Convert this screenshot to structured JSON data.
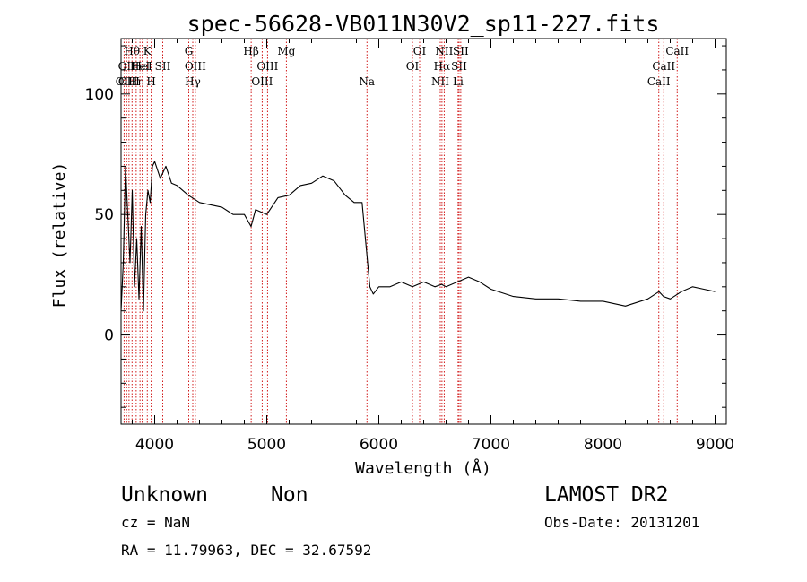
{
  "chart_data": {
    "type": "line",
    "title": "spec-56628-VB011N30V2_sp11-227.fits",
    "xlabel": "Wavelength (Å)",
    "ylabel": "Flux (relative)",
    "xlim": [
      3700,
      9100
    ],
    "ylim": [
      -37,
      123
    ],
    "x_ticks": [
      4000,
      5000,
      6000,
      7000,
      8000,
      9000
    ],
    "y_ticks": [
      0,
      50,
      100
    ],
    "x_minor_step": 200,
    "y_minor_step": 10,
    "grid": false,
    "line_color": "#000000",
    "marker_color": "#cc0000",
    "series": [
      {
        "x": [
          3700,
          3720,
          3740,
          3760,
          3780,
          3800,
          3820,
          3840,
          3860,
          3880,
          3900,
          3920,
          3940,
          3960,
          3980,
          4000,
          4050,
          4100,
          4150,
          4200,
          4300,
          4400,
          4500,
          4600,
          4700,
          4800,
          4860,
          4900,
          5000,
          5100,
          5200,
          5300,
          5400,
          5500,
          5600,
          5700,
          5780,
          5850,
          5880,
          5900,
          5920,
          5950,
          6000,
          6100,
          6200,
          6300,
          6400,
          6500,
          6560,
          6600,
          6700,
          6800,
          6900,
          7000,
          7200,
          7400,
          7600,
          7800,
          8000,
          8200,
          8400,
          8500,
          8540,
          8600,
          8700,
          8800,
          8900,
          9000
        ],
        "y": [
          10,
          30,
          70,
          50,
          30,
          60,
          20,
          40,
          15,
          45,
          10,
          50,
          60,
          55,
          70,
          72,
          65,
          70,
          63,
          62,
          58,
          55,
          54,
          53,
          50,
          50,
          45,
          52,
          50,
          57,
          58,
          62,
          63,
          66,
          64,
          58,
          55,
          55,
          40,
          30,
          20,
          17,
          20,
          20,
          22,
          20,
          22,
          20,
          21,
          20,
          22,
          24,
          22,
          19,
          16,
          15,
          15,
          14,
          14,
          12,
          15,
          18,
          16,
          15,
          18,
          20,
          19,
          18
        ]
      }
    ],
    "lines": [
      {
        "x": 3727,
        "row": 2,
        "label": "OII"
      },
      {
        "x": 3750,
        "row": 1,
        "label": "OII"
      },
      {
        "x": 3771,
        "row": 2,
        "label": "OIII"
      },
      {
        "x": 3798,
        "row": 0,
        "label": "Hθ"
      },
      {
        "x": 3835,
        "row": 2,
        "label": "Hη"
      },
      {
        "x": 3869,
        "row": 1,
        "label": "HeI"
      },
      {
        "x": 3889,
        "row": 1,
        "label": "HeI"
      },
      {
        "x": 3934,
        "row": 0,
        "label": "K"
      },
      {
        "x": 3969,
        "row": 2,
        "label": "H"
      },
      {
        "x": 4072,
        "row": 1,
        "label": "SII"
      },
      {
        "x": 4304,
        "row": 0,
        "label": "G"
      },
      {
        "x": 4340,
        "row": 2,
        "label": "Hγ"
      },
      {
        "x": 4363,
        "row": 1,
        "label": "OIII"
      },
      {
        "x": 4861,
        "row": 0,
        "label": "Hβ"
      },
      {
        "x": 4959,
        "row": 2,
        "label": "OIII"
      },
      {
        "x": 5007,
        "row": 1,
        "label": "OIII"
      },
      {
        "x": 5175,
        "row": 0,
        "label": "Mg"
      },
      {
        "x": 5894,
        "row": 2,
        "label": "Na"
      },
      {
        "x": 6300,
        "row": 1,
        "label": "OI"
      },
      {
        "x": 6364,
        "row": 0,
        "label": "OI"
      },
      {
        "x": 6548,
        "row": 2,
        "label": "NII"
      },
      {
        "x": 6563,
        "row": 1,
        "label": "Hα"
      },
      {
        "x": 6583,
        "row": 0,
        "label": "NII"
      },
      {
        "x": 6707,
        "row": 2,
        "label": "Li"
      },
      {
        "x": 6716,
        "row": 1,
        "label": "SII"
      },
      {
        "x": 6731,
        "row": 0,
        "label": "SII"
      },
      {
        "x": 8498,
        "row": 2,
        "label": "CaII"
      },
      {
        "x": 8542,
        "row": 1,
        "label": "CaII"
      },
      {
        "x": 8662,
        "row": 0,
        "label": "CaII"
      }
    ]
  },
  "info": {
    "object_class": "Unknown",
    "subclass": "Non",
    "survey": "LAMOST DR2",
    "cz": "cz = NaN",
    "obs_date": "Obs-Date: 20131201",
    "coords": "RA =  11.79963, DEC =  32.67592"
  }
}
